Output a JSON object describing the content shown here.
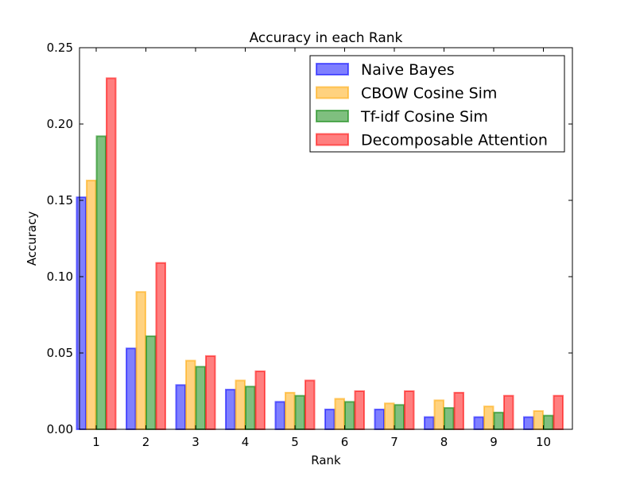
{
  "chart_data": {
    "type": "bar",
    "title": "Accuracy in each Rank",
    "xlabel": "Rank",
    "ylabel": "Accuracy",
    "categories": [
      "1",
      "2",
      "3",
      "4",
      "5",
      "6",
      "7",
      "8",
      "9",
      "10"
    ],
    "ylim": [
      0,
      0.25
    ],
    "yticks": [
      "0.00",
      "0.05",
      "0.10",
      "0.15",
      "0.20",
      "0.25"
    ],
    "legend_position": "top-right",
    "grid": false,
    "series": [
      {
        "name": "Naive Bayes",
        "color": "#0000ff",
        "values": [
          0.152,
          0.053,
          0.029,
          0.026,
          0.018,
          0.013,
          0.013,
          0.008,
          0.008,
          0.008
        ]
      },
      {
        "name": "CBOW Cosine Sim",
        "color": "#ffa500",
        "values": [
          0.163,
          0.09,
          0.045,
          0.032,
          0.024,
          0.02,
          0.017,
          0.019,
          0.015,
          0.012
        ]
      },
      {
        "name": "Tf-idf Cosine Sim",
        "color": "#008000",
        "values": [
          0.192,
          0.061,
          0.041,
          0.028,
          0.022,
          0.018,
          0.016,
          0.014,
          0.011,
          0.009
        ]
      },
      {
        "name": "Decomposable Attention",
        "color": "#ff0000",
        "values": [
          0.23,
          0.109,
          0.048,
          0.038,
          0.032,
          0.025,
          0.025,
          0.024,
          0.022,
          0.022
        ]
      }
    ]
  }
}
